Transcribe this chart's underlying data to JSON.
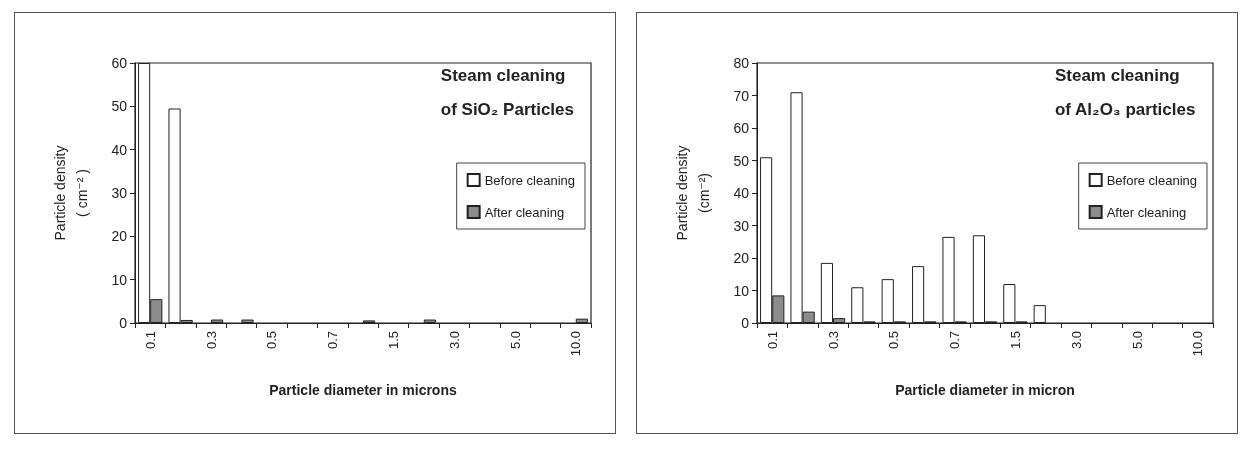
{
  "chart_data": [
    {
      "type": "bar",
      "title": "Steam cleaning\nof SiO₂ Particles",
      "xlabel": "Particle diameter in microns",
      "ylabel": "Particle density\n( cm⁻² )",
      "categories": [
        "0.1",
        null,
        "0.3",
        null,
        "0.5",
        null,
        "0.7",
        null,
        "1.5",
        null,
        "3.0",
        null,
        "5.0",
        null,
        "10.0"
      ],
      "series": [
        {
          "name": "Before cleaning",
          "color": "#ffffff",
          "values": [
            60,
            49.5,
            0,
            0,
            0,
            0,
            0,
            0,
            0,
            0,
            0,
            0,
            0,
            0,
            0
          ]
        },
        {
          "name": "After cleaning",
          "color": "#8c8c8c",
          "values": [
            5.5,
            0.7,
            0.8,
            0.8,
            0,
            0,
            0,
            0.6,
            0,
            0.8,
            0,
            0,
            0,
            0,
            1
          ]
        }
      ],
      "ylim": [
        0,
        60
      ],
      "yticks": [
        0,
        10,
        20,
        30,
        40,
        50,
        60
      ],
      "grid": false,
      "legend": "right"
    },
    {
      "type": "bar",
      "title": "Steam cleaning\nof Al₂O₃ particles",
      "xlabel": "Particle diameter in micron",
      "ylabel": "Particle density\n(cm⁻²)",
      "categories": [
        "0.1",
        null,
        "0.3",
        null,
        "0.5",
        null,
        "0.7",
        null,
        "1.5",
        null,
        "3.0",
        null,
        "5.0",
        null,
        "10.0"
      ],
      "series": [
        {
          "name": "Before cleaning",
          "color": "#ffffff",
          "values": [
            51,
            71,
            18.5,
            11,
            13.5,
            17.5,
            26.5,
            27,
            12,
            5.5,
            0,
            0,
            0,
            0,
            0
          ]
        },
        {
          "name": "After cleaning",
          "color": "#8c8c8c",
          "values": [
            8.5,
            3.5,
            1.5,
            0.5,
            0.5,
            0.5,
            0.5,
            0.5,
            0.5,
            0,
            0,
            0,
            0,
            0,
            0
          ]
        }
      ],
      "ylim": [
        0,
        80
      ],
      "yticks": [
        0,
        10,
        20,
        30,
        40,
        50,
        60,
        70,
        80
      ],
      "grid": false,
      "legend": "right"
    }
  ]
}
